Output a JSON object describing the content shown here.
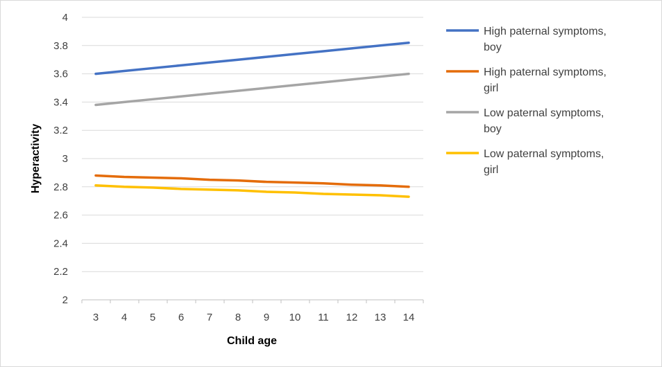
{
  "chart_data": {
    "type": "line",
    "title": "",
    "xlabel": "Child age",
    "ylabel": "Hyperactivity",
    "x": [
      3,
      4,
      5,
      6,
      7,
      8,
      9,
      10,
      11,
      12,
      13,
      14
    ],
    "ylim": [
      2,
      4
    ],
    "yticks": [
      "2",
      "2.2",
      "2.4",
      "2.6",
      "2.8",
      "3",
      "3.2",
      "3.4",
      "3.6",
      "3.8",
      "4"
    ],
    "xticks": [
      "3",
      "4",
      "5",
      "6",
      "7",
      "8",
      "9",
      "10",
      "11",
      "12",
      "13",
      "14"
    ],
    "grid": true,
    "legend_position": "right",
    "series": [
      {
        "name_line1": "High paternal symptoms,",
        "name_line2": "boy",
        "color": "#4472C4",
        "values": [
          3.6,
          3.62,
          3.64,
          3.66,
          3.68,
          3.7,
          3.72,
          3.74,
          3.76,
          3.78,
          3.8,
          3.82
        ]
      },
      {
        "name_line1": "High paternal symptoms,",
        "name_line2": "girl",
        "color": "#E46C0A",
        "values": [
          2.88,
          2.87,
          2.865,
          2.86,
          2.85,
          2.845,
          2.835,
          2.83,
          2.825,
          2.815,
          2.81,
          2.8
        ]
      },
      {
        "name_line1": "Low paternal symptoms,",
        "name_line2": "boy",
        "color": "#A5A5A5",
        "values": [
          3.38,
          3.4,
          3.42,
          3.44,
          3.46,
          3.48,
          3.5,
          3.52,
          3.54,
          3.56,
          3.58,
          3.6
        ]
      },
      {
        "name_line1": "Low paternal symptoms,",
        "name_line2": "girl",
        "color": "#FFC000",
        "values": [
          2.81,
          2.8,
          2.795,
          2.785,
          2.78,
          2.775,
          2.765,
          2.76,
          2.75,
          2.745,
          2.74,
          2.73
        ]
      }
    ]
  }
}
